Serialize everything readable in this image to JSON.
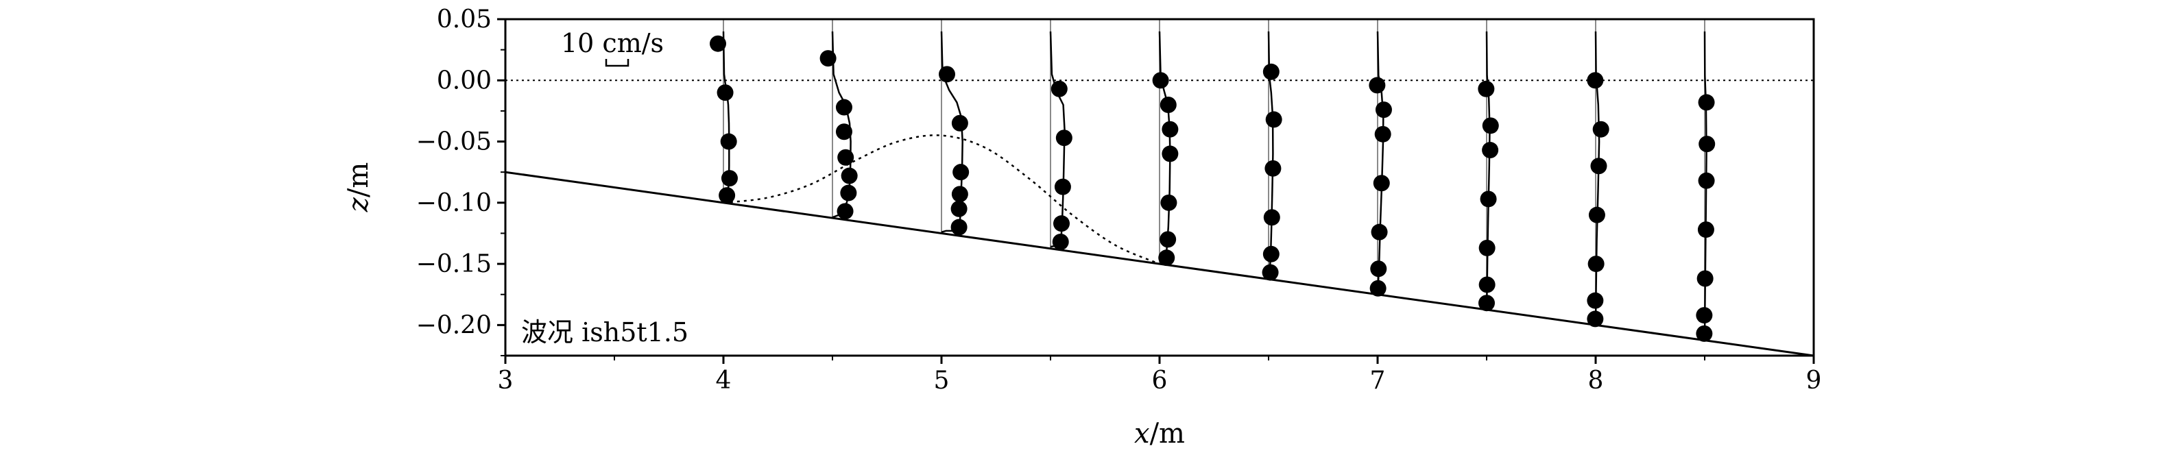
{
  "chart_data": {
    "type": "line",
    "xlabel_var": "x",
    "xlabel_unit": "/m",
    "ylabel_var": "z",
    "ylabel_unit": "/m",
    "xlim": [
      3,
      9
    ],
    "ylim": [
      -0.225,
      0.05
    ],
    "xticks": [
      3,
      4,
      5,
      6,
      7,
      8,
      9
    ],
    "xtick_labels": [
      "3",
      "4",
      "5",
      "6",
      "7",
      "8",
      "9"
    ],
    "yticks": [
      0.05,
      0.0,
      -0.05,
      -0.1,
      -0.15,
      -0.2
    ],
    "ytick_labels": [
      "0.05",
      "0.00",
      "−0.05",
      "−0.10",
      "−0.15",
      "−0.20"
    ],
    "scale_bar_label": "10 cm/s",
    "scale_bar_velocity_cm_s": 10,
    "case_label": "波况 ish5t1.5",
    "still_water_level": 0.0,
    "grid": false,
    "bed": {
      "x": [
        3,
        9
      ],
      "z": [
        -0.075,
        -0.225
      ]
    },
    "breaker_bar_profile": {
      "x": [
        4.0,
        4.2,
        4.4,
        4.6,
        4.8,
        5.0,
        5.2,
        5.4,
        5.6,
        5.8,
        6.0
      ],
      "z": [
        -0.1,
        -0.096,
        -0.085,
        -0.066,
        -0.05,
        -0.045,
        -0.055,
        -0.08,
        -0.11,
        -0.135,
        -0.15
      ]
    },
    "stations": [
      {
        "x": 4.0,
        "obs": {
          "u": [
            -2.5,
            0.8,
            2.4,
            2.8,
            1.6
          ],
          "z": [
            0.03,
            -0.01,
            -0.05,
            -0.08,
            -0.094
          ]
        },
        "model": {
          "u": [
            0,
            0.3,
            0.8,
            1.6,
            2.2,
            2.5,
            2.6,
            2.6,
            2.4,
            1.8,
            0.5
          ],
          "z": [
            0.04,
            0.005,
            -0.002,
            -0.01,
            -0.02,
            -0.035,
            -0.05,
            -0.07,
            -0.085,
            -0.094,
            -0.099
          ]
        }
      },
      {
        "x": 4.5,
        "obs": {
          "u": [
            -2.0,
            5.3,
            5.3,
            6.0,
            7.7,
            7.3,
            5.8
          ],
          "z": [
            0.018,
            -0.022,
            -0.042,
            -0.063,
            -0.078,
            -0.092,
            -0.107
          ]
        },
        "model": {
          "u": [
            0,
            0.5,
            3.0,
            6.0,
            7.8,
            8.3,
            8.2,
            7.7,
            6.5,
            3.0,
            0
          ],
          "z": [
            0.04,
            0.005,
            -0.01,
            -0.02,
            -0.035,
            -0.05,
            -0.07,
            -0.09,
            -0.1,
            -0.11,
            -0.112
          ]
        }
      },
      {
        "x": 5.0,
        "obs": {
          "u": [
            2.5,
            8.4,
            8.8,
            8.4,
            8.0,
            8.0
          ],
          "z": [
            0.005,
            -0.035,
            -0.075,
            -0.093,
            -0.105,
            -0.12
          ]
        },
        "model": {
          "u": [
            0,
            0.5,
            3.5,
            7.0,
            9.0,
            9.6,
            9.4,
            9.0,
            8.6,
            8.2,
            6.0,
            2.0,
            0
          ],
          "z": [
            0.04,
            0.005,
            -0.008,
            -0.018,
            -0.03,
            -0.05,
            -0.07,
            -0.09,
            -0.11,
            -0.122,
            -0.123,
            -0.123,
            -0.124
          ]
        }
      },
      {
        "x": 5.5,
        "obs": {
          "u": [
            4.0,
            6.2,
            5.6,
            5.0,
            4.6
          ],
          "z": [
            -0.007,
            -0.047,
            -0.087,
            -0.117,
            -0.132
          ]
        },
        "model": {
          "u": [
            0,
            0.6,
            3.0,
            5.8,
            6.4,
            6.2,
            5.8,
            5.3,
            4.8,
            3.0,
            0
          ],
          "z": [
            0.04,
            0.005,
            -0.01,
            -0.02,
            -0.04,
            -0.06,
            -0.09,
            -0.115,
            -0.13,
            -0.135,
            -0.136
          ]
        }
      },
      {
        "x": 6.0,
        "obs": {
          "u": [
            0.5,
            4.0,
            4.8,
            4.8,
            4.2,
            3.8,
            3.2
          ],
          "z": [
            0.0,
            -0.02,
            -0.04,
            -0.06,
            -0.1,
            -0.13,
            -0.145
          ]
        },
        "model": {
          "u": [
            0,
            0.5,
            2.0,
            3.8,
            4.6,
            4.8,
            4.6,
            4.0,
            3.2,
            2.0,
            0
          ],
          "z": [
            0.04,
            0.004,
            -0.008,
            -0.02,
            -0.04,
            -0.06,
            -0.09,
            -0.12,
            -0.14,
            -0.148,
            -0.15
          ]
        }
      },
      {
        "x": 6.5,
        "obs": {
          "u": [
            1.2,
            2.4,
            2.0,
            1.5,
            1.2,
            0.8
          ],
          "z": [
            0.007,
            -0.032,
            -0.072,
            -0.112,
            -0.142,
            -0.157
          ]
        },
        "model": {
          "u": [
            0,
            0.3,
            1.2,
            1.9,
            2.0,
            1.7,
            1.3,
            1.0,
            0.6,
            0
          ],
          "z": [
            0.04,
            0.004,
            -0.01,
            -0.03,
            -0.06,
            -0.09,
            -0.12,
            -0.14,
            -0.155,
            -0.162
          ]
        }
      },
      {
        "x": 7.0,
        "obs": {
          "u": [
            -0.2,
            2.8,
            2.4,
            1.8,
            0.8,
            0.4,
            0.2
          ],
          "z": [
            -0.004,
            -0.024,
            -0.044,
            -0.084,
            -0.124,
            -0.154,
            -0.17
          ]
        },
        "model": {
          "u": [
            0,
            0.4,
            1.8,
            2.6,
            2.5,
            2.0,
            1.2,
            0.7,
            0.3,
            0
          ],
          "z": [
            0.04,
            0.004,
            -0.01,
            -0.03,
            -0.05,
            -0.08,
            -0.12,
            -0.15,
            -0.165,
            -0.175
          ]
        }
      },
      {
        "x": 7.5,
        "obs": {
          "u": [
            -0.2,
            1.8,
            1.6,
            0.8,
            0.2,
            0.2,
            0.0
          ],
          "z": [
            -0.007,
            -0.037,
            -0.057,
            -0.097,
            -0.137,
            -0.167,
            -0.182
          ]
        },
        "model": {
          "u": [
            0,
            0.2,
            1.0,
            1.4,
            1.2,
            0.8,
            0.4,
            0.2,
            0
          ],
          "z": [
            0.04,
            0.004,
            -0.015,
            -0.04,
            -0.07,
            -0.1,
            -0.14,
            -0.17,
            -0.187
          ]
        }
      },
      {
        "x": 8.0,
        "obs": {
          "u": [
            -0.2,
            2.4,
            1.4,
            0.6,
            0.2,
            -0.2,
            -0.2
          ],
          "z": [
            0.0,
            -0.04,
            -0.07,
            -0.11,
            -0.15,
            -0.18,
            -0.195
          ]
        },
        "model": {
          "u": [
            0,
            0.2,
            1.2,
            1.6,
            1.1,
            0.5,
            0.2,
            0
          ],
          "z": [
            0.04,
            0.004,
            -0.02,
            -0.05,
            -0.09,
            -0.13,
            -0.17,
            -0.2
          ]
        }
      },
      {
        "x": 8.5,
        "obs": {
          "u": [
            0.8,
            1.0,
            0.8,
            0.6,
            0.2,
            -0.2,
            -0.2
          ],
          "z": [
            -0.018,
            -0.052,
            -0.082,
            -0.122,
            -0.162,
            -0.192,
            -0.207
          ]
        },
        "model": {
          "u": [
            0,
            0.1,
            0.6,
            0.8,
            0.6,
            0.3,
            0.1,
            0
          ],
          "z": [
            0.04,
            0.004,
            -0.02,
            -0.06,
            -0.1,
            -0.15,
            -0.19,
            -0.212
          ]
        }
      }
    ]
  }
}
